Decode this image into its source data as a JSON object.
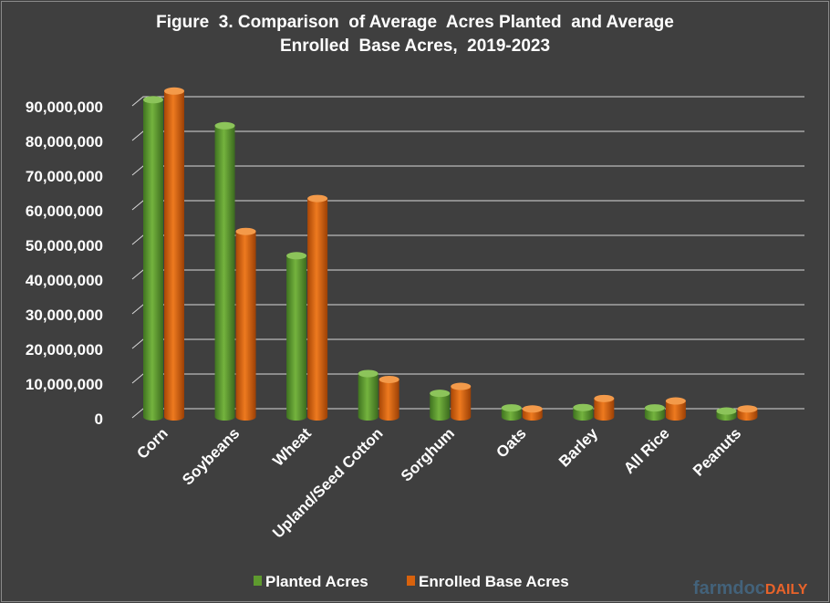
{
  "chart_data": {
    "type": "bar",
    "title": [
      "Figure  3. Comparison  of Average  Acres Planted  and Average",
      "Enrolled  Base Acres,  2019-2023"
    ],
    "xlabel": "",
    "ylabel": "",
    "categories": [
      "Corn",
      "Soybeans",
      "Wheat",
      "Upland/Seed Cotton",
      "Sorghum",
      "Oats",
      "Barley",
      "All Rice",
      "Peanuts"
    ],
    "series": [
      {
        "name": "Planted Acres",
        "color": "#5e9a2e",
        "values": [
          91500000,
          84000000,
          46500000,
          12500000,
          6800000,
          2600000,
          2700000,
          2600000,
          1700000
        ]
      },
      {
        "name": "Enrolled Base Acres",
        "color": "#d8620d",
        "values": [
          94000000,
          53500000,
          63000000,
          10800000,
          8800000,
          2300000,
          5300000,
          4600000,
          2300000
        ]
      }
    ],
    "ylim": [
      0,
      90000000
    ],
    "yticks": [
      "0",
      "10,000,000",
      "20,000,000",
      "30,000,000",
      "40,000,000",
      "50,000,000",
      "60,000,000",
      "70,000,000",
      "80,000,000",
      "90,000,000"
    ],
    "grid": true,
    "legend_position": "bottom-center",
    "background": "#3f3f3f",
    "text_color": "#ffffff"
  },
  "watermark": {
    "part1": "farmdoc",
    "part2": "DAILY"
  }
}
